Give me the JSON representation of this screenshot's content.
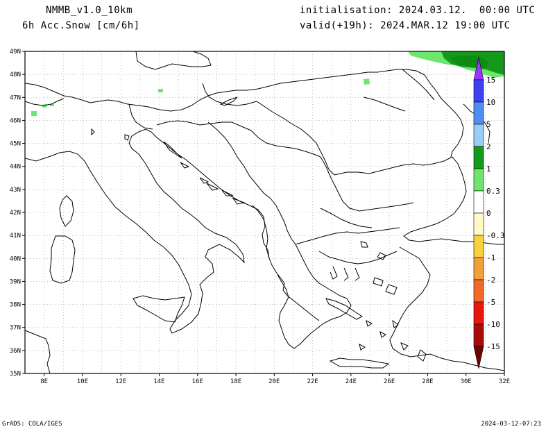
{
  "header": {
    "model": "NMMB_v1.0_10km",
    "field": "6h Acc.Snow [cm/6h]",
    "init": "initialisation: 2024.03.12.  00:00 UTC",
    "valid": "valid(+19h): 2024.MAR.12 19:00 UTC"
  },
  "footer": {
    "credit": "GrADS: COLA/IGES",
    "timestamp": "2024-03-12-07:23"
  },
  "axes": {
    "lon_labels": [
      "8E",
      "10E",
      "12E",
      "14E",
      "16E",
      "18E",
      "20E",
      "22E",
      "24E",
      "26E",
      "28E",
      "30E",
      "32E"
    ],
    "lat_labels": [
      "49N",
      "48N",
      "47N",
      "46N",
      "45N",
      "44N",
      "43N",
      "42N",
      "41N",
      "40N",
      "39N",
      "38N",
      "37N",
      "36N",
      "35N"
    ],
    "lon_range": [
      7,
      32
    ],
    "lat_range": [
      35,
      49
    ],
    "grid": "dotted"
  },
  "colorbar": {
    "levels": [
      {
        "label": "15",
        "color": "#9a35ff"
      },
      {
        "label": "10",
        "color": "#3f3ff2"
      },
      {
        "label": "5",
        "color": "#4f8ef0"
      },
      {
        "label": "2",
        "color": "#9ccbf7"
      },
      {
        "label": "1",
        "color": "#149a1a"
      },
      {
        "label": "0.3",
        "color": "#6ee56e"
      },
      {
        "label": "0",
        "color": "#ffffff"
      },
      {
        "label": "-0.3",
        "color": "#fff9c8"
      },
      {
        "label": "-1",
        "color": "#f7d23c"
      },
      {
        "label": "-2",
        "color": "#f2a03c"
      },
      {
        "label": "-5",
        "color": "#f06a2a"
      },
      {
        "label": "-10",
        "color": "#e8160e"
      },
      {
        "label": "-15",
        "color": "#a70b0b"
      }
    ],
    "bottom_color": "#6e0303"
  },
  "coast_color": "#000000",
  "snow_colors": {
    "light": "#6ee56e",
    "medium": "#149a1a"
  }
}
